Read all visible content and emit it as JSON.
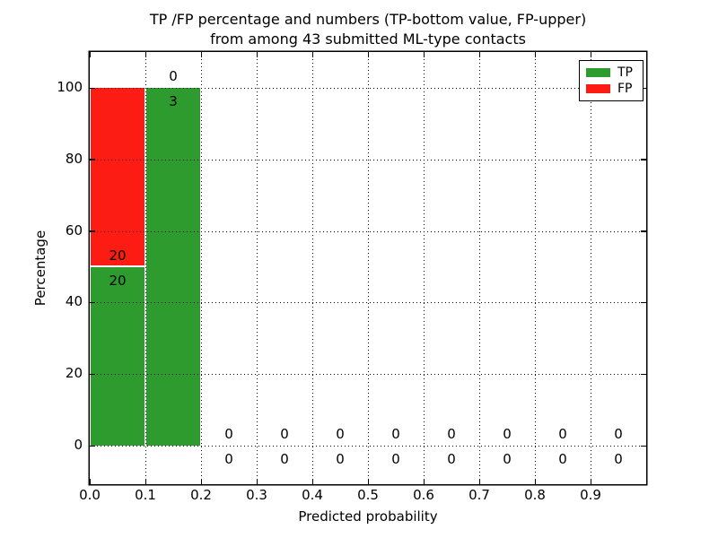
{
  "figure": {
    "title_line1": "TP /FP percentage and numbers (TP-bottom value, FP-upper)",
    "title_line2": "from among 43 submitted ML-type contacts"
  },
  "x_axis": {
    "label": "Predicted probability",
    "ticks": [
      "0.0",
      "0.1",
      "0.2",
      "0.3",
      "0.4",
      "0.5",
      "0.6",
      "0.7",
      "0.8",
      "0.9"
    ]
  },
  "y_axis": {
    "label": "Percentage",
    "ticks": [
      "0",
      "20",
      "40",
      "60",
      "80",
      "100"
    ]
  },
  "legend": {
    "items": [
      {
        "label": "TP",
        "color": "#2e9b2e"
      },
      {
        "label": "FP",
        "color": "#fc1c13"
      }
    ]
  },
  "chart_data": {
    "type": "bar",
    "stacked": true,
    "title": "TP /FP percentage and numbers (TP-bottom value, FP-upper) from among 43 submitted ML-type contacts",
    "xlabel": "Predicted probability",
    "ylabel": "Percentage",
    "xlim": [
      0.0,
      1.0
    ],
    "ylim": [
      -11,
      110
    ],
    "grid": true,
    "legend_position": "upper right",
    "total_contacts": 43,
    "bin_edges": [
      0.0,
      0.1,
      0.2,
      0.3,
      0.4,
      0.5,
      0.6,
      0.7,
      0.8,
      0.9,
      1.0
    ],
    "series": [
      {
        "name": "TP",
        "color": "#2e9b2e",
        "percent": [
          50,
          100,
          0,
          0,
          0,
          0,
          0,
          0,
          0,
          0
        ],
        "counts": [
          20,
          3,
          0,
          0,
          0,
          0,
          0,
          0,
          0,
          0
        ]
      },
      {
        "name": "FP",
        "color": "#fc1c13",
        "percent": [
          50,
          0,
          0,
          0,
          0,
          0,
          0,
          0,
          0,
          0
        ],
        "counts": [
          20,
          0,
          0,
          0,
          0,
          0,
          0,
          0,
          0,
          0
        ]
      }
    ]
  }
}
